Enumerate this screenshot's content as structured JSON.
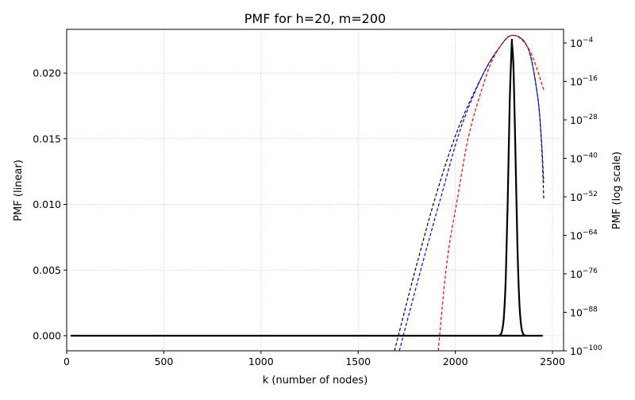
{
  "chart_data": {
    "type": "line",
    "title": "PMF for h=20, m=200",
    "xlabel": "k (number of nodes)",
    "ylabel_left": "PMF (linear)",
    "ylabel_right": "PMF (log scale)",
    "xlim": [
      0,
      2557
    ],
    "ylim_left": [
      -0.00115,
      0.02333
    ],
    "ylim_right": [
      1e-100,
      1.6
    ],
    "right_scale": "log",
    "grid": true,
    "x_ticks": [
      0,
      500,
      1000,
      1500,
      2000,
      2500
    ],
    "x_tick_labels": [
      "0",
      "500",
      "1000",
      "1500",
      "2000",
      "2500"
    ],
    "y_left_ticks": [
      0,
      0.005,
      0.01,
      0.015,
      0.02
    ],
    "y_left_tick_labels": [
      "0.000",
      "0.005",
      "0.010",
      "0.015",
      "0.020"
    ],
    "y_right_tick_exponents": [
      -4,
      -16,
      -28,
      -40,
      -52,
      -64,
      -76,
      -88,
      -100
    ],
    "y_right_tick_base": "10",
    "series": [
      {
        "axis": "left",
        "color": "#000000",
        "style": "solid",
        "points": [
          [
            20,
            0
          ],
          [
            2200,
            0
          ],
          [
            2220,
            7.4e-06
          ],
          [
            2230,
            5.9e-05
          ],
          [
            2240,
            0.00034
          ],
          [
            2250,
            0.00146
          ],
          [
            2260,
            0.00457
          ],
          [
            2270,
            0.0105
          ],
          [
            2280,
            0.0178
          ],
          [
            2290,
            0.0221
          ],
          [
            2292,
            0.0222
          ],
          [
            2300,
            0.0201
          ],
          [
            2310,
            0.0135
          ],
          [
            2320,
            0.0066
          ],
          [
            2330,
            0.0024
          ],
          [
            2340,
            0.00063
          ],
          [
            2350,
            0.00012
          ],
          [
            2360,
            1.8e-05
          ],
          [
            2370,
            0
          ],
          [
            2450,
            0
          ]
        ]
      },
      {
        "axis": "right",
        "color": "#000000",
        "style": "dashed",
        "points": [
          [
            1687,
            1e-100
          ],
          [
            1794,
            1.6e-75
          ],
          [
            1904,
            1.6e-51
          ],
          [
            2013,
            1e-31
          ],
          [
            2136,
            2.5e-15
          ],
          [
            2218,
            6.3e-07
          ],
          [
            2292,
            0.022
          ],
          [
            2373,
            3.2e-06
          ],
          [
            2422,
            1e-20
          ],
          [
            2443,
            1e-35
          ],
          [
            2455,
            3.2e-53
          ]
        ]
      },
      {
        "axis": "right",
        "color": "#0000ff",
        "style": "dashed",
        "points": [
          [
            1712,
            1e-100
          ],
          [
            1822,
            1.6e-75
          ],
          [
            1932,
            1.6e-51
          ],
          [
            2026,
            1e-31
          ],
          [
            2136,
            2.5e-15
          ],
          [
            2218,
            6.3e-07
          ],
          [
            2292,
            0.022
          ],
          [
            2373,
            3.2e-06
          ],
          [
            2422,
            1e-20
          ],
          [
            2443,
            1e-34
          ],
          [
            2455,
            2.5e-48
          ]
        ]
      },
      {
        "axis": "right",
        "color": "#ff0000",
        "style": "dashed",
        "points": [
          [
            1912,
            1e-100
          ],
          [
            1957,
            5e-73
          ],
          [
            2013,
            1.6e-52
          ],
          [
            2067,
            3.2e-34
          ],
          [
            2136,
            2.5e-19
          ],
          [
            2202,
            1e-08
          ],
          [
            2292,
            0.022
          ],
          [
            2381,
            6.3e-07
          ],
          [
            2455,
            2.5e-19
          ]
        ]
      }
    ]
  }
}
